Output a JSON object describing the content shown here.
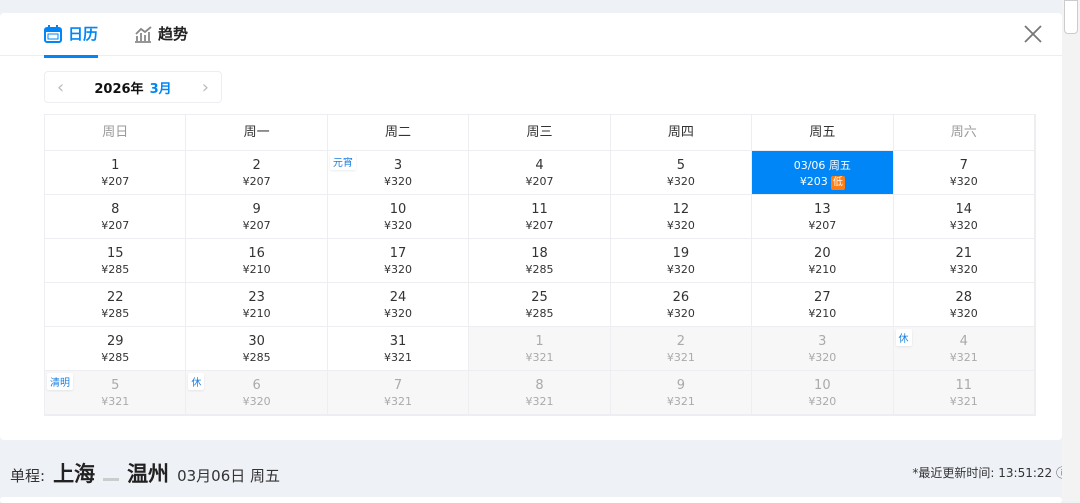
{
  "tabs": [
    {
      "label": "日历",
      "icon": "calendar-icon",
      "active": true
    },
    {
      "label": "趋势",
      "icon": "trend-chart-icon",
      "active": false
    }
  ],
  "nav": {
    "year": "2026年",
    "month": "3月"
  },
  "weekdays": [
    "周日",
    "周一",
    "周二",
    "周三",
    "周四",
    "周五",
    "周六"
  ],
  "weeks": [
    [
      {
        "d": "1",
        "p": "¥207"
      },
      {
        "d": "2",
        "p": "¥207"
      },
      {
        "d": "3",
        "p": "¥320",
        "tag": "元宵"
      },
      {
        "d": "4",
        "p": "¥207"
      },
      {
        "d": "5",
        "p": "¥320"
      },
      {
        "d": "03/06 周五",
        "p": "¥203",
        "sel": true,
        "low": "低"
      },
      {
        "d": "7",
        "p": "¥320"
      }
    ],
    [
      {
        "d": "8",
        "p": "¥207"
      },
      {
        "d": "9",
        "p": "¥207"
      },
      {
        "d": "10",
        "p": "¥320"
      },
      {
        "d": "11",
        "p": "¥207"
      },
      {
        "d": "12",
        "p": "¥320"
      },
      {
        "d": "13",
        "p": "¥207"
      },
      {
        "d": "14",
        "p": "¥320"
      }
    ],
    [
      {
        "d": "15",
        "p": "¥285"
      },
      {
        "d": "16",
        "p": "¥210"
      },
      {
        "d": "17",
        "p": "¥320"
      },
      {
        "d": "18",
        "p": "¥285"
      },
      {
        "d": "19",
        "p": "¥320"
      },
      {
        "d": "20",
        "p": "¥210"
      },
      {
        "d": "21",
        "p": "¥320"
      }
    ],
    [
      {
        "d": "22",
        "p": "¥285"
      },
      {
        "d": "23",
        "p": "¥210"
      },
      {
        "d": "24",
        "p": "¥320"
      },
      {
        "d": "25",
        "p": "¥285"
      },
      {
        "d": "26",
        "p": "¥320"
      },
      {
        "d": "27",
        "p": "¥210"
      },
      {
        "d": "28",
        "p": "¥320"
      }
    ],
    [
      {
        "d": "29",
        "p": "¥285"
      },
      {
        "d": "30",
        "p": "¥285"
      },
      {
        "d": "31",
        "p": "¥321"
      },
      {
        "d": "1",
        "p": "¥321",
        "muted": true
      },
      {
        "d": "2",
        "p": "¥321",
        "muted": true
      },
      {
        "d": "3",
        "p": "¥320",
        "muted": true
      },
      {
        "d": "4",
        "p": "¥321",
        "muted": true,
        "tag": "休"
      }
    ],
    [
      {
        "d": "5",
        "p": "¥321",
        "muted": true,
        "tag": "清明"
      },
      {
        "d": "6",
        "p": "¥320",
        "muted": true,
        "tag": "休"
      },
      {
        "d": "7",
        "p": "¥321",
        "muted": true
      },
      {
        "d": "8",
        "p": "¥321",
        "muted": true
      },
      {
        "d": "9",
        "p": "¥321",
        "muted": true
      },
      {
        "d": "10",
        "p": "¥320",
        "muted": true
      },
      {
        "d": "11",
        "p": "¥321",
        "muted": true
      }
    ]
  ],
  "route": {
    "label": "单程:",
    "from": "上海",
    "to": "温州",
    "date": "03月06日 周五"
  },
  "updated": "*最近更新时间: 13:51:22 ⓘ",
  "colors": {
    "accent": "#0086f6",
    "low": "#ff7d13"
  }
}
